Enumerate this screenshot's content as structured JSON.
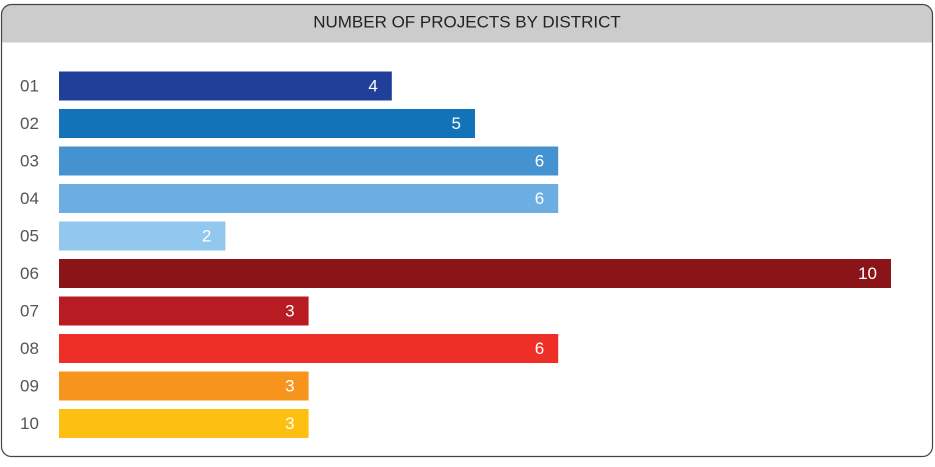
{
  "chart_data": {
    "type": "bar",
    "orientation": "horizontal",
    "title": "NUMBER OF PROJECTS BY DISTRICT",
    "categories": [
      "01",
      "02",
      "03",
      "04",
      "05",
      "06",
      "07",
      "08",
      "09",
      "10"
    ],
    "values": [
      4,
      5,
      6,
      6,
      2,
      10,
      3,
      6,
      3,
      3
    ],
    "colors": [
      "#1f3f99",
      "#1273b8",
      "#4592d1",
      "#6daee2",
      "#93c8ee",
      "#8a1418",
      "#b81c22",
      "#ee2f27",
      "#f7941d",
      "#fdc010"
    ]
  }
}
